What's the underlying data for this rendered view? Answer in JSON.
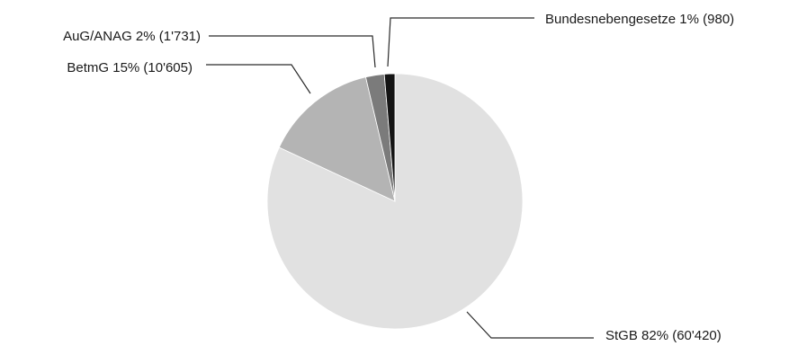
{
  "chart_data": {
    "type": "pie",
    "start": "12 o'clock",
    "direction": "clockwise",
    "slices": [
      {
        "name": "StGB",
        "percent": 82,
        "value": 60420,
        "color": "#e1e1e1",
        "label": "StGB 82% (60'420)"
      },
      {
        "name": "BetmG",
        "percent": 15,
        "value": 10605,
        "color": "#b4b4b4",
        "label": "BetmG 15% (10'605)"
      },
      {
        "name": "AuG/ANAG",
        "percent": 2,
        "value": 1731,
        "color": "#7b7b7b",
        "label": "AuG/ANAG 2% (1'731)"
      },
      {
        "name": "Bundesnebengesetze",
        "percent": 1,
        "value": 980,
        "color": "#141414",
        "label": "Bundesnebengesetze 1% (980)"
      }
    ]
  }
}
